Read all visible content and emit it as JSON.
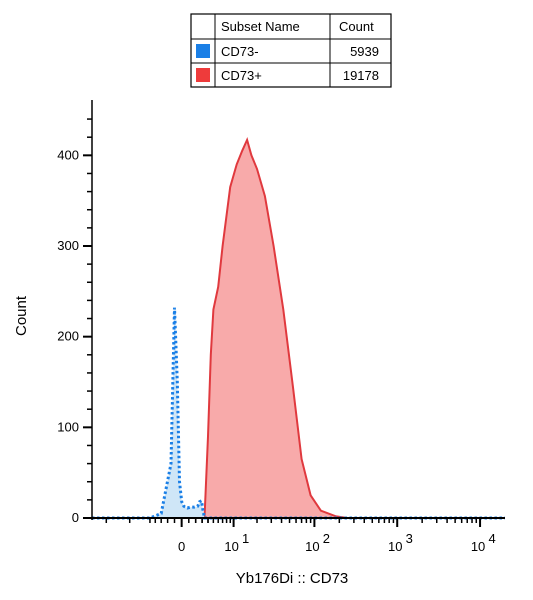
{
  "legend": {
    "header_name": "Subset Name",
    "header_count": "Count",
    "rows": [
      {
        "name": "CD73-",
        "count": "5939",
        "color": "#1a7fe6"
      },
      {
        "name": "CD73+",
        "count": "19178",
        "color": "#ee3b3b"
      }
    ]
  },
  "chart_data": {
    "type": "area",
    "xlabel": "Yb176Di :: CD73",
    "ylabel": "Count",
    "x_scale": "arcsinh",
    "ylim": [
      0,
      450
    ],
    "y_ticks": [
      0,
      100,
      200,
      300,
      400
    ],
    "x_ticks": [
      {
        "value": 0,
        "label": "0"
      },
      {
        "value": 10,
        "base": "10",
        "exp": "1"
      },
      {
        "value": 100,
        "base": "10",
        "exp": "2"
      },
      {
        "value": 1000,
        "base": "10",
        "exp": "3"
      },
      {
        "value": 10000,
        "base": "10",
        "exp": "4"
      }
    ],
    "series": [
      {
        "name": "CD73-",
        "color": "#1a7fe6",
        "fill": "#cfe6f7",
        "style": "dotted",
        "points": [
          [
            -30,
            0
          ],
          [
            -5,
            0
          ],
          [
            -3,
            5
          ],
          [
            -1.5,
            60
          ],
          [
            -1,
            232
          ],
          [
            -0.6,
            150
          ],
          [
            -0.3,
            40
          ],
          [
            0,
            18
          ],
          [
            0.3,
            13
          ],
          [
            0.8,
            11
          ],
          [
            1.3,
            12
          ],
          [
            1.8,
            12
          ],
          [
            2.3,
            13
          ],
          [
            2.6,
            18
          ],
          [
            2.9,
            19
          ],
          [
            3.1,
            10
          ],
          [
            3.4,
            0
          ],
          [
            20000,
            0
          ]
        ]
      },
      {
        "name": "CD73+",
        "color": "#e0393e",
        "fill": "#f8aaaa",
        "style": "solid",
        "points": [
          [
            3.4,
            0
          ],
          [
            4,
            90
          ],
          [
            4.5,
            180
          ],
          [
            5,
            230
          ],
          [
            6,
            255
          ],
          [
            7,
            300
          ],
          [
            9,
            365
          ],
          [
            11,
            390
          ],
          [
            13,
            405
          ],
          [
            15,
            417
          ],
          [
            17,
            400
          ],
          [
            20,
            385
          ],
          [
            25,
            355
          ],
          [
            32,
            300
          ],
          [
            42,
            230
          ],
          [
            55,
            145
          ],
          [
            70,
            65
          ],
          [
            90,
            25
          ],
          [
            120,
            8
          ],
          [
            180,
            2
          ],
          [
            250,
            0
          ]
        ]
      }
    ]
  }
}
